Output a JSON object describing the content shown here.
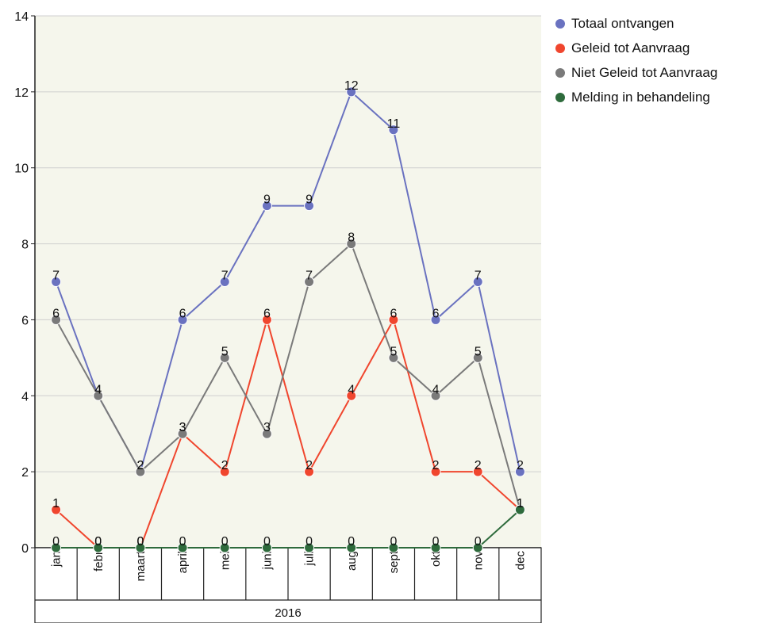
{
  "chart_data": {
    "type": "line",
    "categories": [
      "januari",
      "februari",
      "maart",
      "april",
      "mei",
      "juni",
      "juli",
      "augustus",
      "september",
      "oktober",
      "november",
      "december"
    ],
    "category_labels": [
      "jan",
      "febr",
      "maart",
      "april",
      "mei",
      "juni",
      "juli",
      "aug",
      "sept",
      "okt",
      "nov",
      "dec"
    ],
    "group_label": "2016",
    "ylim": [
      0,
      14
    ],
    "yticks": [
      "0",
      "2",
      "4",
      "6",
      "8",
      "10",
      "12",
      "14"
    ],
    "grid": true,
    "legend_position": "top-right",
    "series": [
      {
        "name": "Totaal ontvangen",
        "color": "#6a72c0",
        "values": [
          7,
          4,
          2,
          6,
          7,
          9,
          9,
          12,
          11,
          6,
          7,
          2
        ]
      },
      {
        "name": "Geleid tot Aanvraag",
        "color": "#f0462e",
        "values": [
          1,
          0,
          0,
          3,
          2,
          6,
          2,
          4,
          6,
          2,
          2,
          1
        ]
      },
      {
        "name": "Niet Geleid tot Aanvraag",
        "color": "#7a7a7a",
        "values": [
          6,
          4,
          2,
          3,
          5,
          3,
          7,
          8,
          5,
          4,
          5,
          1
        ]
      },
      {
        "name": "Melding in behandeling",
        "color": "#2e6b3c",
        "values": [
          0,
          0,
          0,
          0,
          0,
          0,
          0,
          0,
          0,
          0,
          0,
          1
        ]
      }
    ]
  }
}
